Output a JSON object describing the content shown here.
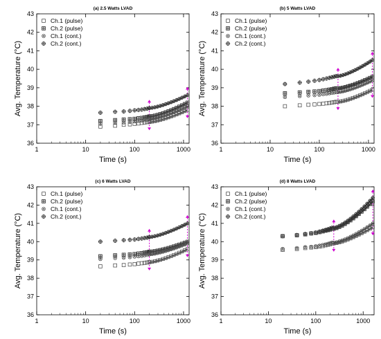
{
  "chart_data": [
    {
      "type": "scatter",
      "title": "(a) 2.5 Watts LVAD",
      "xlabel": "Time (s)",
      "ylabel": "Avg. Temperature (°C)",
      "xscale": "log",
      "xlim": [
        1,
        1300
      ],
      "ylim": [
        36,
        43
      ],
      "xticks": [
        "1",
        "10",
        "100",
        "1000"
      ],
      "yticks": [
        "36",
        "37",
        "38",
        "39",
        "40",
        "41",
        "42",
        "43"
      ],
      "legend_position": "top-left",
      "markers_x": [
        20,
        40,
        60,
        80,
        100,
        120,
        140,
        160,
        180,
        200
      ],
      "dense_region": [
        200,
        1200
      ],
      "series": [
        {
          "name": "Ch.1 (pulse)",
          "marker": "square",
          "y": [
            36.9,
            36.95,
            37.0,
            37.02,
            37.05,
            37.07,
            37.1,
            37.12,
            37.14,
            37.15
          ],
          "end": 37.8
        },
        {
          "name": "Ch.2 (pulse)",
          "marker": "square-filled",
          "y": [
            37.2,
            37.25,
            37.28,
            37.3,
            37.32,
            37.35,
            37.37,
            37.4,
            37.42,
            37.45
          ],
          "end": 38.2
        },
        {
          "name": "Ch.1 (cont.)",
          "marker": "x-circle",
          "y": [
            37.05,
            37.1,
            37.12,
            37.15,
            37.18,
            37.2,
            37.22,
            37.25,
            37.27,
            37.3
          ],
          "end": 38.0
        },
        {
          "name": "Ch.2 (cont.)",
          "marker": "plus-circle",
          "y": [
            37.65,
            37.7,
            37.72,
            37.75,
            37.78,
            37.8,
            37.82,
            37.85,
            37.87,
            37.9
          ],
          "end": 38.6
        }
      ]
    },
    {
      "type": "scatter",
      "title": "(b) 5 Watts LVAD",
      "xlabel": "Time (s)",
      "ylabel": "Avg. Temperature (°C)",
      "xscale": "log",
      "xlim": [
        1,
        1300
      ],
      "ylim": [
        36,
        43
      ],
      "xticks": [
        "1",
        "10",
        "100",
        "1000"
      ],
      "yticks": [
        "36",
        "37",
        "38",
        "39",
        "40",
        "41",
        "42",
        "43"
      ],
      "legend_position": "top-left",
      "markers_x": [
        20,
        40,
        60,
        80,
        100,
        120,
        140,
        160,
        180,
        200,
        220
      ],
      "dense_region": [
        240,
        1200
      ],
      "series": [
        {
          "name": "Ch.1 (pulse)",
          "marker": "square",
          "y": [
            38.0,
            38.05,
            38.08,
            38.1,
            38.12,
            38.14,
            38.16,
            38.18,
            38.2,
            38.22,
            38.24
          ],
          "end": 38.9
        },
        {
          "name": "Ch.2 (pulse)",
          "marker": "square-filled",
          "y": [
            38.7,
            38.75,
            38.78,
            38.8,
            38.82,
            38.85,
            38.87,
            38.9,
            38.92,
            38.95,
            38.97
          ],
          "end": 39.6
        },
        {
          "name": "Ch.1 (cont.)",
          "marker": "x-circle",
          "y": [
            38.5,
            38.55,
            38.58,
            38.6,
            38.62,
            38.65,
            38.67,
            38.7,
            38.72,
            38.74,
            38.76
          ],
          "end": 39.4
        },
        {
          "name": "Ch.2 (cont.)",
          "marker": "plus-circle",
          "y": [
            39.2,
            39.28,
            39.33,
            39.38,
            39.42,
            39.46,
            39.5,
            39.54,
            39.57,
            39.6,
            39.63
          ],
          "end": 40.5
        }
      ]
    },
    {
      "type": "scatter",
      "title": "(c) 6 Watts LVAD",
      "xlabel": "Time (s)",
      "ylabel": "Avg. Temperature (°C)",
      "xscale": "log",
      "xlim": [
        1,
        1300
      ],
      "ylim": [
        36,
        43
      ],
      "xticks": [
        "1",
        "10",
        "100",
        "1000"
      ],
      "yticks": [
        "36",
        "37",
        "38",
        "39",
        "40",
        "41",
        "42",
        "43"
      ],
      "legend_position": "top-left",
      "markers_x": [
        20,
        40,
        60,
        80,
        100,
        120,
        140,
        160,
        180,
        200
      ],
      "dense_region": [
        200,
        1200
      ],
      "series": [
        {
          "name": "Ch.1 (pulse)",
          "marker": "square",
          "y": [
            38.65,
            38.7,
            38.72,
            38.75,
            38.77,
            38.8,
            38.82,
            38.84,
            38.86,
            38.88
          ],
          "end": 39.6
        },
        {
          "name": "Ch.2 (pulse)",
          "marker": "square-filled",
          "y": [
            39.2,
            39.25,
            39.28,
            39.3,
            39.32,
            39.35,
            39.37,
            39.4,
            39.42,
            39.45
          ],
          "end": 40.0
        },
        {
          "name": "Ch.1 (cont.)",
          "marker": "x-circle",
          "y": [
            39.05,
            39.1,
            39.12,
            39.15,
            39.18,
            39.2,
            39.22,
            39.25,
            39.27,
            39.3
          ],
          "end": 39.9
        },
        {
          "name": "Ch.2 (cont.)",
          "marker": "plus-circle",
          "y": [
            40.0,
            40.05,
            40.08,
            40.1,
            40.12,
            40.15,
            40.17,
            40.2,
            40.22,
            40.25
          ],
          "end": 41.0
        }
      ]
    },
    {
      "type": "scatter",
      "title": "(d) 8 Watts LVAD",
      "xlabel": "Time (s)",
      "ylabel": "Avg. Temperature (°C)",
      "xscale": "log",
      "xlim": [
        1,
        1700
      ],
      "ylim": [
        36,
        43
      ],
      "xticks": [
        "1",
        "10",
        "100",
        "1000"
      ],
      "yticks": [
        "36",
        "37",
        "38",
        "39",
        "40",
        "41",
        "42",
        "43"
      ],
      "legend_position": "top-left",
      "markers_x": [
        20,
        40,
        60,
        80,
        100,
        120,
        140,
        160,
        180,
        200,
        220
      ],
      "dense_region": [
        240,
        1600
      ],
      "series": [
        {
          "name": "Ch.1 (pulse)",
          "marker": "square",
          "y": [
            39.55,
            39.6,
            39.65,
            39.68,
            39.7,
            39.73,
            39.76,
            39.8,
            39.83,
            39.86,
            39.9
          ],
          "end": 40.8
        },
        {
          "name": "Ch.2 (pulse)",
          "marker": "square-filled",
          "y": [
            40.3,
            40.35,
            40.4,
            40.45,
            40.48,
            40.52,
            40.56,
            40.6,
            40.63,
            40.66,
            40.7
          ],
          "end": 42.2
        },
        {
          "name": "Ch.1 (cont.)",
          "marker": "x-circle",
          "y": [
            39.6,
            39.65,
            39.7,
            39.72,
            39.75,
            39.78,
            39.82,
            39.85,
            39.88,
            39.92,
            39.95
          ],
          "end": 41.0
        },
        {
          "name": "Ch.2 (cont.)",
          "marker": "plus-circle",
          "y": [
            40.3,
            40.36,
            40.42,
            40.46,
            40.5,
            40.55,
            40.6,
            40.64,
            40.68,
            40.72,
            40.76
          ],
          "end": 42.4
        }
      ]
    }
  ]
}
